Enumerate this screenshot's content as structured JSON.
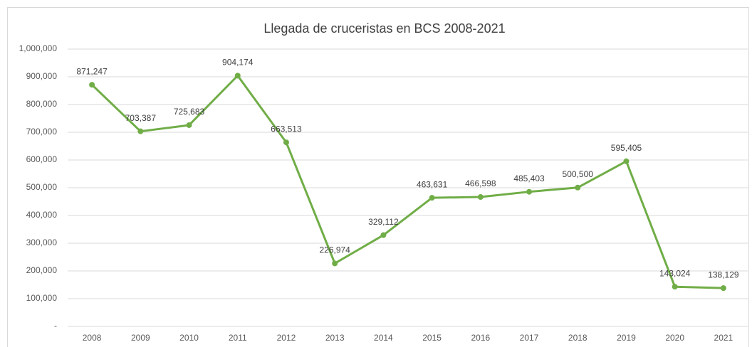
{
  "chart_data": {
    "type": "line",
    "title": "Llegada de cruceristas en BCS 2008-2021",
    "categories": [
      "2008",
      "2009",
      "2010",
      "2011",
      "2012",
      "2013",
      "2014",
      "2015",
      "2016",
      "2017",
      "2018",
      "2019",
      "2020",
      "2021"
    ],
    "values": [
      871247,
      703387,
      725683,
      904174,
      663513,
      226974,
      329112,
      463631,
      466598,
      485403,
      500500,
      595405,
      143024,
      138129
    ],
    "value_labels": [
      "871,247",
      "703,387",
      "725,683",
      "904,174",
      "663,513",
      "226,974",
      "329,112",
      "463,631",
      "466,598",
      "485,403",
      "500,500",
      "595,405",
      "143,024",
      "138,129"
    ],
    "color": "#70ad47",
    "ylim": [
      0,
      1000000
    ],
    "yticks": [
      {
        "value": 0,
        "label": "-"
      },
      {
        "value": 100000,
        "label": "100,000"
      },
      {
        "value": 200000,
        "label": "200,000"
      },
      {
        "value": 300000,
        "label": "300,000"
      },
      {
        "value": 400000,
        "label": "400,000"
      },
      {
        "value": 500000,
        "label": "500,000"
      },
      {
        "value": 600000,
        "label": "600,000"
      },
      {
        "value": 700000,
        "label": "700,000"
      },
      {
        "value": 800000,
        "label": "800,000"
      },
      {
        "value": 900000,
        "label": "900,000"
      },
      {
        "value": 1000000,
        "label": "1,000,000"
      }
    ],
    "grid": true
  }
}
